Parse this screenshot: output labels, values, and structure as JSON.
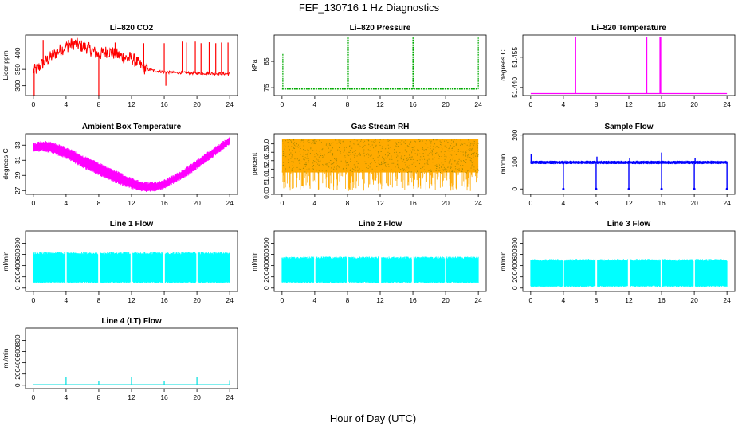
{
  "figure": {
    "title": "FEF_130716  1 Hz Diagnostics",
    "xlabel": "Hour of Day (UTC)"
  },
  "chart_data": [
    {
      "id": "li820-co2",
      "type": "line",
      "title": "Li–820 CO2",
      "ylabel": "Licor ppm",
      "color": "#ff0000",
      "xlim": [
        0,
        24
      ],
      "ylim": [
        270,
        455
      ],
      "xticks": [
        0,
        4,
        8,
        12,
        16,
        20,
        24
      ],
      "yticks": [
        300,
        350,
        400
      ],
      "x": [
        0,
        0.5,
        1,
        1.5,
        2,
        2.5,
        3,
        3.5,
        4,
        4.5,
        5,
        5.5,
        6,
        6.5,
        7,
        7.5,
        8,
        8.5,
        9,
        9.5,
        10,
        10.5,
        11,
        11.5,
        12,
        12.5,
        13,
        13.5,
        14,
        15,
        16,
        17,
        18,
        19,
        20,
        21,
        22,
        23,
        24
      ],
      "y": [
        345,
        352,
        365,
        375,
        385,
        395,
        405,
        412,
        420,
        425,
        430,
        425,
        420,
        418,
        410,
        402,
        395,
        400,
        405,
        402,
        398,
        392,
        388,
        384,
        385,
        375,
        365,
        355,
        350,
        345,
        342,
        340,
        340,
        339,
        338,
        338,
        337,
        337,
        336
      ],
      "spikes": [
        [
          0.1,
          270
        ],
        [
          1.2,
          440
        ],
        [
          4.3,
          440
        ],
        [
          8,
          270
        ],
        [
          10,
          432
        ],
        [
          13.5,
          430
        ],
        [
          16,
          430
        ],
        [
          16.2,
          300
        ],
        [
          18.2,
          435
        ],
        [
          18.7,
          432
        ],
        [
          19.8,
          435
        ],
        [
          20.5,
          430
        ],
        [
          21.5,
          433
        ],
        [
          22.3,
          430
        ],
        [
          23,
          432
        ],
        [
          23.8,
          432
        ]
      ]
    },
    {
      "id": "li820-pressure",
      "type": "line",
      "title": "Li–820 Pressure",
      "ylabel": "kPa",
      "color": "#00aa00",
      "xlim": [
        0,
        24
      ],
      "ylim": [
        72,
        95
      ],
      "xticks": [
        0,
        4,
        8,
        12,
        16,
        20,
        24
      ],
      "yticks": [
        75,
        85
      ],
      "x": [
        0,
        24
      ],
      "y": [
        74.5,
        74.5
      ],
      "spikes": [
        [
          0.1,
          88
        ],
        [
          8.1,
          94
        ],
        [
          16,
          94
        ],
        [
          16.1,
          94
        ],
        [
          24,
          94
        ]
      ]
    },
    {
      "id": "li820-temperature",
      "type": "line",
      "title": "Li–820 Temperature",
      "ylabel": "degrees C",
      "color": "#ff00ff",
      "xlim": [
        0,
        24
      ],
      "ylim": [
        51.436,
        51.466
      ],
      "xticks": [
        0,
        4,
        8,
        12,
        16,
        20,
        24
      ],
      "yticks": [
        51.44,
        51.455
      ],
      "ytick_labels": [
        "51.440",
        "51.455"
      ],
      "x": [
        0,
        24
      ],
      "y": [
        51.437,
        51.437
      ],
      "spikes": [
        [
          5.5,
          51.465
        ],
        [
          14.2,
          51.465
        ],
        [
          15.8,
          51.465
        ],
        [
          15.9,
          51.465
        ]
      ]
    },
    {
      "id": "ambient-box-temperature",
      "type": "area",
      "title": "Ambient Box Temperature",
      "ylabel": "degrees C",
      "color": "#ff00ff",
      "xlim": [
        0,
        24
      ],
      "ylim": [
        26.5,
        34.5
      ],
      "xticks": [
        0,
        4,
        8,
        12,
        16,
        20,
        24
      ],
      "yticks": [
        27,
        29,
        31,
        33
      ],
      "x": [
        0,
        1,
        2,
        3,
        4,
        5,
        6,
        7,
        8,
        9,
        10,
        11,
        12,
        13,
        14,
        15,
        16,
        17,
        18,
        19,
        20,
        21,
        22,
        23,
        24
      ],
      "lower": [
        32.0,
        32.2,
        32.0,
        31.6,
        31.2,
        30.6,
        30.0,
        29.5,
        29.0,
        28.5,
        28.0,
        27.6,
        27.2,
        26.9,
        26.8,
        26.9,
        27.2,
        27.8,
        28.4,
        29.0,
        29.8,
        30.6,
        31.4,
        32.2,
        33.0
      ],
      "upper": [
        33.3,
        33.6,
        33.5,
        33.2,
        32.8,
        32.3,
        31.7,
        31.2,
        30.7,
        30.2,
        29.7,
        29.2,
        28.7,
        28.3,
        28.1,
        28.2,
        28.5,
        29.0,
        29.6,
        30.3,
        31.1,
        31.9,
        32.7,
        33.4,
        34.2
      ]
    },
    {
      "id": "gas-stream-rh",
      "type": "area",
      "title": "Gas Stream RH",
      "ylabel": "percent",
      "color": "#ffaa00",
      "dot_color": "#aa8800",
      "xlim": [
        0,
        24
      ],
      "ylim": [
        0,
        3.6
      ],
      "xticks": [
        0,
        4,
        8,
        12,
        16,
        20,
        24
      ],
      "yticks": [
        0.0,
        0.5,
        1.0,
        1.5,
        2.0,
        2.5,
        3.0
      ],
      "ytick_labels": [
        "0.0",
        "0.5",
        "1.0",
        "1.5",
        "2.0",
        "2.5",
        "3.0"
      ],
      "x": [
        0,
        24
      ],
      "lower": [
        1.3,
        1.3
      ],
      "upper": [
        3.3,
        3.3
      ],
      "dips_min": 0.2
    },
    {
      "id": "sample-flow",
      "type": "line",
      "title": "Sample Flow",
      "ylabel": "ml/min",
      "color": "#0000ff",
      "xlim": [
        0,
        24
      ],
      "ylim": [
        -20,
        205
      ],
      "xticks": [
        0,
        4,
        8,
        12,
        16,
        20,
        24
      ],
      "yticks": [
        0,
        100,
        200
      ],
      "x": [
        0,
        24
      ],
      "lower": [
        92,
        92
      ],
      "upper": [
        105,
        105
      ],
      "spikes": [
        [
          0.05,
          130
        ],
        [
          4,
          0
        ],
        [
          8,
          0
        ],
        [
          8.1,
          120
        ],
        [
          12,
          0
        ],
        [
          12.1,
          115
        ],
        [
          16,
          0
        ],
        [
          16,
          135
        ],
        [
          20,
          0
        ],
        [
          20.1,
          115
        ],
        [
          24,
          0
        ]
      ]
    },
    {
      "id": "line-1-flow",
      "type": "area",
      "title": "Line 1 Flow",
      "ylabel": "ml/min",
      "color": "#00ffff",
      "xlim": [
        0,
        24
      ],
      "ylim": [
        -60,
        1020
      ],
      "xticks": [
        0,
        4,
        8,
        12,
        16,
        20,
        24
      ],
      "yticks": [
        0,
        200,
        400,
        600,
        800
      ],
      "x": [
        0,
        24
      ],
      "lower": [
        90,
        90
      ],
      "upper": [
        640,
        640
      ],
      "gaps": [
        4,
        8,
        12,
        16,
        20
      ]
    },
    {
      "id": "line-2-flow",
      "type": "area",
      "title": "Line 2 Flow",
      "ylabel": "ml/min",
      "color": "#00ffff",
      "xlim": [
        0,
        24
      ],
      "ylim": [
        -60,
        1020
      ],
      "xticks": [
        0,
        4,
        8,
        12,
        16,
        20,
        24
      ],
      "yticks": [
        0,
        200,
        400,
        600,
        800
      ],
      "x": [
        0,
        24
      ],
      "lower": [
        90,
        90
      ],
      "upper": [
        560,
        560
      ],
      "gaps": [
        4,
        8,
        12,
        16,
        20
      ]
    },
    {
      "id": "line-3-flow",
      "type": "area",
      "title": "Line 3 Flow",
      "ylabel": "ml/min",
      "color": "#00ffff",
      "xlim": [
        0,
        24
      ],
      "ylim": [
        -60,
        1020
      ],
      "xticks": [
        0,
        4,
        8,
        12,
        16,
        20,
        24
      ],
      "yticks": [
        0,
        200,
        400,
        600,
        800
      ],
      "x": [
        0,
        24
      ],
      "lower": [
        20,
        20
      ],
      "upper": [
        520,
        520
      ],
      "gaps": [
        4,
        8,
        12,
        16,
        20
      ]
    },
    {
      "id": "line-4-lt-flow",
      "type": "line",
      "title": "Line 4 (LT) Flow",
      "ylabel": "ml/min",
      "color": "#00dddd",
      "xlim": [
        0,
        24
      ],
      "ylim": [
        -60,
        1020
      ],
      "xticks": [
        0,
        4,
        8,
        12,
        16,
        20,
        24
      ],
      "yticks": [
        0,
        200,
        400,
        600,
        800
      ],
      "x": [
        0,
        24
      ],
      "y": [
        10,
        10
      ],
      "spikes": [
        [
          4,
          140
        ],
        [
          8,
          80
        ],
        [
          12,
          140
        ],
        [
          16,
          80
        ],
        [
          20,
          140
        ],
        [
          24,
          90
        ]
      ]
    }
  ]
}
